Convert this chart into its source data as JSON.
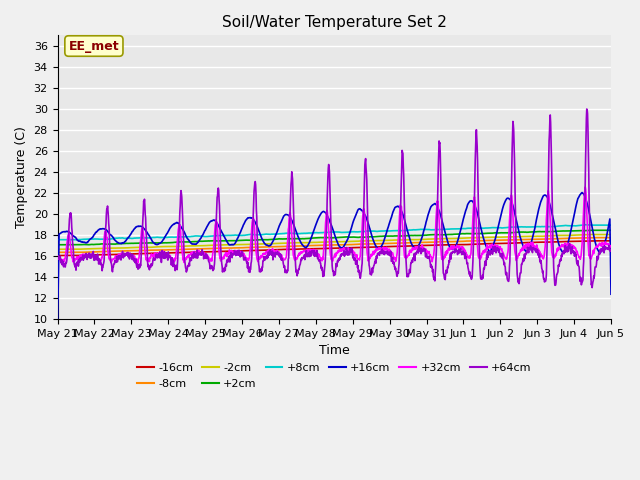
{
  "title": "Soil/Water Temperature Set 2",
  "xlabel": "Time",
  "ylabel": "Temperature (C)",
  "ylim": [
    10,
    37
  ],
  "yticks": [
    10,
    12,
    14,
    16,
    18,
    20,
    22,
    24,
    26,
    28,
    30,
    32,
    34,
    36
  ],
  "bg_color": "#f0f0f0",
  "plot_bg_color": "#e8e8e8",
  "watermark": "EE_met",
  "series_colors": {
    "-16cm": "#cc0000",
    "-8cm": "#ff8800",
    "-2cm": "#cccc00",
    "+2cm": "#00aa00",
    "+8cm": "#00cccc",
    "+16cm": "#0000cc",
    "+32cm": "#ff00ff",
    "+64cm": "#9900cc"
  },
  "tick_labels": [
    "May 21",
    "May 22",
    "May 23",
    "May 24",
    "May 25",
    "May 26",
    "May 27",
    "May 28",
    "May 29",
    "May 30",
    "May 31",
    "Jun 1",
    "Jun 2",
    "Jun 3",
    "Jun 4",
    "Jun 5"
  ]
}
